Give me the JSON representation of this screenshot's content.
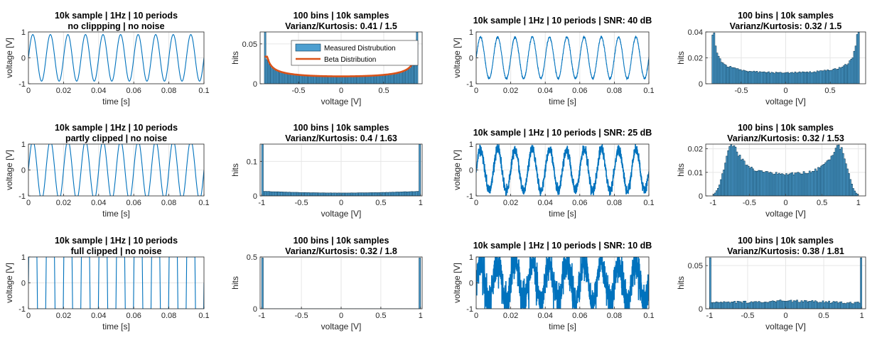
{
  "colors": {
    "signal": "#0072BD",
    "hist_fill": "#4D9FD0",
    "hist_edge": "#0D3A55",
    "beta": "#D95319",
    "grid": "#E6E6E6",
    "axis": "#262626"
  },
  "chart_data": [
    {
      "id": "p1",
      "type": "line",
      "title": "10k sample | 1Hz | 10 periods",
      "subtitle": "no clippping | no noise",
      "xlabel": "time [s]",
      "ylabel": "voltage [V]",
      "xlim": [
        0,
        0.1
      ],
      "ylim": [
        -1,
        1
      ],
      "xticks": [
        0,
        0.02,
        0.04,
        0.06,
        0.08,
        0.1
      ],
      "xtick_labels": [
        "0",
        "0.02",
        "0.04",
        "0.06",
        "0.08",
        "0.1"
      ],
      "yticks": [
        -1,
        0,
        1
      ],
      "ytick_labels": [
        "-1",
        "0",
        "1"
      ],
      "signal": {
        "amplitude": 0.9,
        "periods": 10,
        "clip": 1,
        "noise": 0
      }
    },
    {
      "id": "p2",
      "type": "bar",
      "title": "100 bins | 10k samples",
      "subtitle": "Varianz/Kurtosis: 0.41 / 1.5",
      "xlabel": "voltage [V]",
      "ylabel": "hits",
      "xlim": [
        -0.95,
        0.95
      ],
      "ylim": [
        0,
        0.065
      ],
      "xticks": [
        -0.5,
        0,
        0.5
      ],
      "xtick_labels": [
        "-0.5",
        "0",
        "0.5"
      ],
      "yticks": [
        0,
        0.05
      ],
      "ytick_labels": [
        "0",
        "0.05"
      ],
      "hist": {
        "shape": "arcsine",
        "range": [
          -0.9,
          0.9
        ],
        "bins": 100,
        "edge_height": 0.065
      },
      "beta_curve": true,
      "legend": {
        "position": "top-right",
        "entries": [
          "Measured Distrubution",
          "Beta Distribution"
        ]
      }
    },
    {
      "id": "p3",
      "type": "line",
      "title": "10k sample | 1Hz | 10 periods | SNR: 40 dB",
      "subtitle": "",
      "xlabel": "time [s]",
      "ylabel": "voltage [V]",
      "xlim": [
        0,
        0.1
      ],
      "ylim": [
        -1,
        1
      ],
      "xticks": [
        0,
        0.02,
        0.04,
        0.06,
        0.08,
        0.1
      ],
      "xtick_labels": [
        "0",
        "0.02",
        "0.04",
        "0.06",
        "0.08",
        "0.1"
      ],
      "yticks": [
        -1,
        0,
        1
      ],
      "ytick_labels": [
        "-1",
        "0",
        "1"
      ],
      "signal": {
        "amplitude": 0.8,
        "periods": 10,
        "clip": 1,
        "noise": 0.02
      }
    },
    {
      "id": "p4",
      "type": "bar",
      "title": "100 bins | 10k samples",
      "subtitle": "Varianz/Kurtosis: 0.32 / 1.5",
      "xlabel": "voltage [V]",
      "ylabel": "hits",
      "xlim": [
        -0.9,
        0.9
      ],
      "ylim": [
        0,
        0.04
      ],
      "xticks": [
        -0.5,
        0,
        0.5
      ],
      "xtick_labels": [
        "-0.5",
        "0",
        "0.5"
      ],
      "yticks": [
        0,
        0.02,
        0.04
      ],
      "ytick_labels": [
        "0",
        "0.02",
        "0.04"
      ],
      "hist": {
        "shape": "arcsine_noise",
        "range": [
          -0.83,
          0.83
        ],
        "bins": 100,
        "peak": 0.038,
        "sigma": 0.02
      }
    },
    {
      "id": "p5",
      "type": "line",
      "title": "10k sample | 1Hz | 10 periods",
      "subtitle": "partly clipped | no noise",
      "xlabel": "time [s]",
      "ylabel": "voltage [V]",
      "xlim": [
        0,
        0.1
      ],
      "ylim": [
        -1,
        1
      ],
      "xticks": [
        0,
        0.02,
        0.04,
        0.06,
        0.08,
        0.1
      ],
      "xtick_labels": [
        "0",
        "0.02",
        "0.04",
        "0.06",
        "0.08",
        "0.1"
      ],
      "yticks": [
        -1,
        0,
        1
      ],
      "ytick_labels": [
        "-1",
        "0",
        "1"
      ],
      "signal": {
        "amplitude": 1.15,
        "periods": 10,
        "clip": 1,
        "noise": 0
      }
    },
    {
      "id": "p6",
      "type": "bar",
      "title": "100 bins | 10k samples",
      "subtitle": "Varianz/Kurtosis: 0.4 / 1.63",
      "xlabel": "voltage [V]",
      "ylabel": "hits",
      "xlim": [
        -1.02,
        1.02
      ],
      "ylim": [
        0,
        0.15
      ],
      "xticks": [
        -1,
        -0.5,
        0,
        0.5,
        1
      ],
      "xtick_labels": [
        "-1",
        "-0.5",
        "0",
        "0.5",
        "1"
      ],
      "yticks": [
        0,
        0.1
      ],
      "ytick_labels": [
        "0",
        "0.1"
      ],
      "hist": {
        "shape": "clipped",
        "range": [
          -1,
          1
        ],
        "bins": 100,
        "edge_height": 0.15,
        "base": 0.0085
      }
    },
    {
      "id": "p7",
      "type": "line",
      "title": "10k sample | 1Hz | 10 periods | SNR: 25 dB",
      "subtitle": "",
      "xlabel": "time [s]",
      "ylabel": "voltage [V]",
      "xlim": [
        0,
        0.1
      ],
      "ylim": [
        -1,
        1
      ],
      "xticks": [
        0,
        0.02,
        0.04,
        0.06,
        0.08,
        0.1
      ],
      "xtick_labels": [
        "0",
        "0.02",
        "0.04",
        "0.06",
        "0.08",
        "0.1"
      ],
      "yticks": [
        -1,
        0,
        1
      ],
      "ytick_labels": [
        "-1",
        "0",
        "1"
      ],
      "signal": {
        "amplitude": 0.8,
        "periods": 10,
        "clip": 1,
        "noise": 0.1
      }
    },
    {
      "id": "p8",
      "type": "bar",
      "title": "100 bins | 10k samples",
      "subtitle": "Varianz/Kurtosis: 0.32 / 1.53",
      "xlabel": "voltage [V]",
      "ylabel": "hits",
      "xlim": [
        -1.1,
        1.1
      ],
      "ylim": [
        0,
        0.022
      ],
      "xticks": [
        -1,
        -0.5,
        0,
        0.5,
        1
      ],
      "xtick_labels": [
        "-1",
        "-0.5",
        "0",
        "0.5",
        "1"
      ],
      "yticks": [
        0,
        0.01,
        0.02
      ],
      "ytick_labels": [
        "0",
        "0.01",
        "0.02"
      ],
      "hist": {
        "shape": "arcsine_noise",
        "range": [
          -1.0,
          1.0
        ],
        "bins": 100,
        "amp": 0.8,
        "sigma": 0.085,
        "peak": 0.021
      }
    },
    {
      "id": "p9",
      "type": "line",
      "title": "10k sample | 1Hz | 10 periods",
      "subtitle": "full clipped | no noise",
      "xlabel": "time [s]",
      "ylabel": "voltage [V]",
      "xlim": [
        0,
        0.1
      ],
      "ylim": [
        -1,
        1
      ],
      "xticks": [
        0,
        0.02,
        0.04,
        0.06,
        0.08,
        0.1
      ],
      "xtick_labels": [
        "0",
        "0.02",
        "0.04",
        "0.06",
        "0.08",
        "0.1"
      ],
      "yticks": [
        -1,
        0,
        1
      ],
      "ytick_labels": [
        "-1",
        "0",
        "1"
      ],
      "signal": {
        "amplitude": 100,
        "periods": 10,
        "clip": 1,
        "noise": 0
      }
    },
    {
      "id": "p10",
      "type": "bar",
      "title": "100 bins | 10k samples",
      "subtitle": "Varianz/Kurtosis: 0.32 / 1.8",
      "xlabel": "voltage [V]",
      "ylabel": "hits",
      "xlim": [
        -1.02,
        1.02
      ],
      "ylim": [
        0,
        0.5
      ],
      "xticks": [
        -1,
        -0.5,
        0,
        0.5,
        1
      ],
      "xtick_labels": [
        "-1",
        "-0.5",
        "0",
        "0.5",
        "1"
      ],
      "yticks": [
        0,
        0.5
      ],
      "ytick_labels": [
        "0",
        "0.5"
      ],
      "hist": {
        "shape": "square",
        "range": [
          -1,
          1
        ],
        "bins": 100,
        "edge_height": 0.49,
        "base": 0.0
      }
    },
    {
      "id": "p11",
      "type": "line",
      "title": "10k sample | 1Hz | 10 periods | SNR: 10 dB",
      "subtitle": "",
      "xlabel": "time [s]",
      "ylabel": "voltage [V]",
      "xlim": [
        0,
        0.1
      ],
      "ylim": [
        -1,
        1
      ],
      "xticks": [
        0,
        0.02,
        0.04,
        0.06,
        0.08,
        0.1
      ],
      "xtick_labels": [
        "0",
        "0.02",
        "0.04",
        "0.06",
        "0.08",
        "0.1"
      ],
      "yticks": [
        -1,
        0,
        1
      ],
      "ytick_labels": [
        "-1",
        "0",
        "1"
      ],
      "signal": {
        "amplitude": 0.8,
        "periods": 10,
        "clip": 1,
        "noise": 0.35
      }
    },
    {
      "id": "p12",
      "type": "bar",
      "title": "100 bins | 10k samples",
      "subtitle": "Varianz/Kurtosis: 0.38 / 1.81",
      "xlabel": "voltage [V]",
      "ylabel": "hits",
      "xlim": [
        -1.05,
        1.05
      ],
      "ylim": [
        0,
        0.06
      ],
      "xticks": [
        -1,
        -0.5,
        0,
        0.5,
        1
      ],
      "xtick_labels": [
        "-1",
        "-0.5",
        "0",
        "0.5",
        "1"
      ],
      "yticks": [
        0,
        0.05
      ],
      "ytick_labels": [
        "0",
        "0.05"
      ],
      "hist": {
        "shape": "clipped_noise",
        "range": [
          -1,
          1
        ],
        "bins": 100,
        "edge_height": 0.059,
        "base": 0.009
      }
    }
  ]
}
